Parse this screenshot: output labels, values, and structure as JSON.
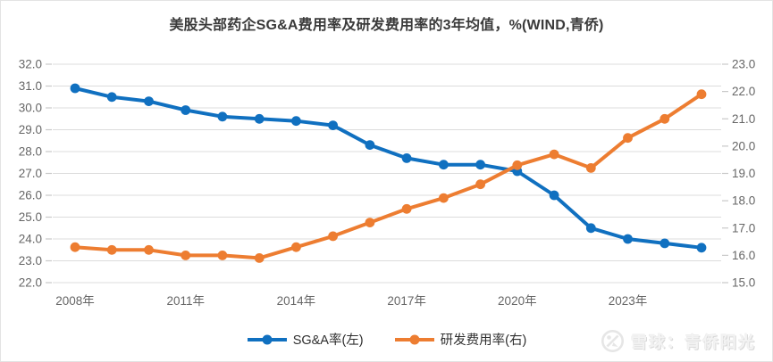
{
  "chart_data": {
    "type": "line",
    "title": "美股头部药企SG&A费用率及研发费用率的3年均值，%(WIND,青侨)",
    "x": [
      "2008",
      "2009",
      "2010",
      "2011",
      "2012",
      "2013",
      "2014",
      "2015",
      "2016",
      "2017",
      "2018",
      "2019",
      "2020",
      "2021",
      "2022",
      "2023",
      "2024",
      "2025"
    ],
    "x_axis": {
      "tick_labels": [
        "2008年",
        "2011年",
        "2014年",
        "2017年",
        "2020年",
        "2023年"
      ],
      "tick_every": 3
    },
    "left_axis": {
      "min": 22.0,
      "max": 32.0,
      "step": 1.0,
      "labels": [
        "32.0",
        "31.0",
        "30.0",
        "29.0",
        "28.0",
        "27.0",
        "26.0",
        "25.0",
        "24.0",
        "23.0",
        "22.0"
      ]
    },
    "right_axis": {
      "min": 15.0,
      "max": 23.0,
      "step": 1.0,
      "labels": [
        "23.0",
        "22.0",
        "21.0",
        "20.0",
        "19.0",
        "18.0",
        "17.0",
        "16.0",
        "15.0"
      ]
    },
    "grid": true,
    "legend_position": "bottom",
    "series": [
      {
        "name": "SG&A率(左)",
        "axis": "left",
        "color": "#1070C0",
        "values": [
          30.9,
          30.5,
          30.3,
          29.9,
          29.6,
          29.5,
          29.4,
          29.2,
          28.3,
          27.7,
          27.4,
          27.4,
          27.1,
          26.0,
          24.5,
          24.0,
          23.8,
          23.6
        ]
      },
      {
        "name": "研发费用率(右)",
        "axis": "right",
        "color": "#ED7D31",
        "values": [
          16.3,
          16.2,
          16.2,
          16.0,
          16.0,
          15.9,
          16.3,
          16.7,
          17.2,
          17.7,
          18.1,
          18.6,
          19.3,
          19.7,
          19.2,
          20.3,
          21.0,
          21.9
        ]
      }
    ],
    "colors": {
      "gridline": "#dcdcdc",
      "tick": "#c9c9c9",
      "axis_text": "#666666"
    }
  },
  "watermark": {
    "text": "雪球：青侨阳光"
  }
}
